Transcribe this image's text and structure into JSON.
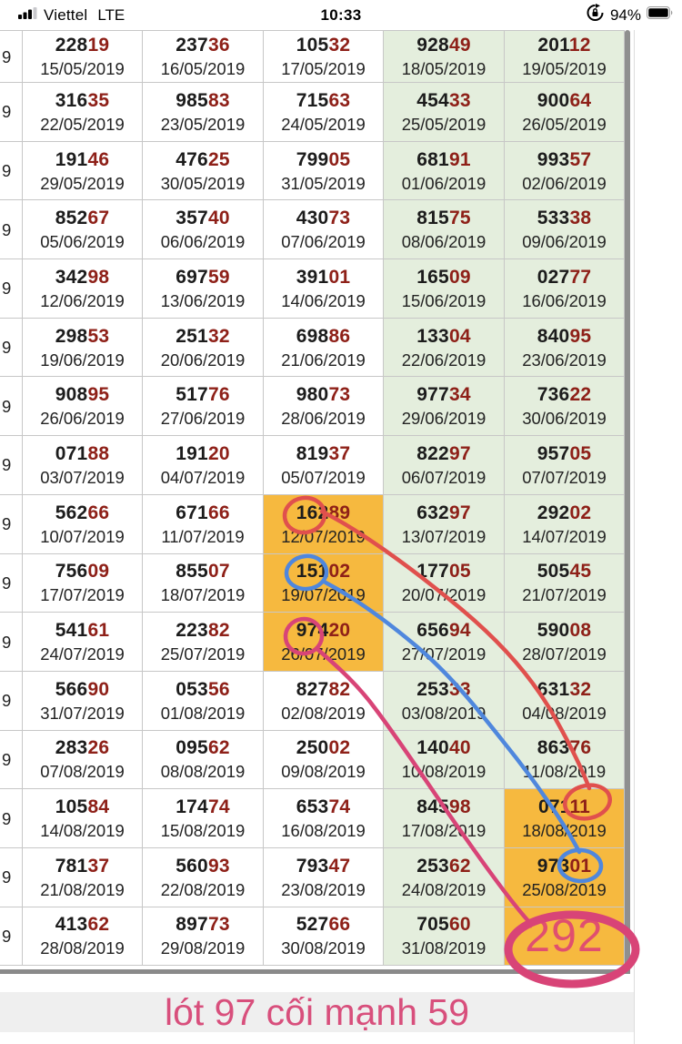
{
  "status_bar": {
    "carrier": "Viettel",
    "network": "LTE",
    "time": "10:33",
    "battery_percent": "94%",
    "icons": [
      "signal-bars-icon",
      "orientation-lock-icon",
      "battery-icon"
    ]
  },
  "table": {
    "left_partial_text": "9",
    "rows": [
      {
        "cells": [
          {
            "n1": "228",
            "n2": "19",
            "date": "15/05/2019",
            "bg": "white"
          },
          {
            "n1": "237",
            "n2": "36",
            "date": "16/05/2019",
            "bg": "white"
          },
          {
            "n1": "105",
            "n2": "32",
            "date": "17/05/2019",
            "bg": "white"
          },
          {
            "n1": "928",
            "n2": "49",
            "date": "18/05/2019",
            "bg": "green"
          },
          {
            "n1": "201",
            "n2": "12",
            "date": "19/05/2019",
            "bg": "green"
          }
        ]
      },
      {
        "cells": [
          {
            "n1": "316",
            "n2": "35",
            "date": "22/05/2019",
            "bg": "white"
          },
          {
            "n1": "985",
            "n2": "83",
            "date": "23/05/2019",
            "bg": "white"
          },
          {
            "n1": "715",
            "n2": "63",
            "date": "24/05/2019",
            "bg": "white"
          },
          {
            "n1": "454",
            "n2": "33",
            "date": "25/05/2019",
            "bg": "green"
          },
          {
            "n1": "900",
            "n2": "64",
            "date": "26/05/2019",
            "bg": "green"
          }
        ]
      },
      {
        "cells": [
          {
            "n1": "191",
            "n2": "46",
            "date": "29/05/2019",
            "bg": "white"
          },
          {
            "n1": "476",
            "n2": "25",
            "date": "30/05/2019",
            "bg": "white"
          },
          {
            "n1": "799",
            "n2": "05",
            "date": "31/05/2019",
            "bg": "white"
          },
          {
            "n1": "681",
            "n2": "91",
            "date": "01/06/2019",
            "bg": "green"
          },
          {
            "n1": "993",
            "n2": "57",
            "date": "02/06/2019",
            "bg": "green"
          }
        ]
      },
      {
        "cells": [
          {
            "n1": "852",
            "n2": "67",
            "date": "05/06/2019",
            "bg": "white"
          },
          {
            "n1": "357",
            "n2": "40",
            "date": "06/06/2019",
            "bg": "white"
          },
          {
            "n1": "430",
            "n2": "73",
            "date": "07/06/2019",
            "bg": "white"
          },
          {
            "n1": "815",
            "n2": "75",
            "date": "08/06/2019",
            "bg": "green"
          },
          {
            "n1": "533",
            "n2": "38",
            "date": "09/06/2019",
            "bg": "green"
          }
        ]
      },
      {
        "cells": [
          {
            "n1": "342",
            "n2": "98",
            "date": "12/06/2019",
            "bg": "white"
          },
          {
            "n1": "697",
            "n2": "59",
            "date": "13/06/2019",
            "bg": "white"
          },
          {
            "n1": "391",
            "n2": "01",
            "date": "14/06/2019",
            "bg": "white"
          },
          {
            "n1": "165",
            "n2": "09",
            "date": "15/06/2019",
            "bg": "green"
          },
          {
            "n1": "027",
            "n2": "77",
            "date": "16/06/2019",
            "bg": "green"
          }
        ]
      },
      {
        "cells": [
          {
            "n1": "298",
            "n2": "53",
            "date": "19/06/2019",
            "bg": "white"
          },
          {
            "n1": "251",
            "n2": "32",
            "date": "20/06/2019",
            "bg": "white"
          },
          {
            "n1": "698",
            "n2": "86",
            "date": "21/06/2019",
            "bg": "white"
          },
          {
            "n1": "133",
            "n2": "04",
            "date": "22/06/2019",
            "bg": "green"
          },
          {
            "n1": "840",
            "n2": "95",
            "date": "23/06/2019",
            "bg": "green"
          }
        ]
      },
      {
        "cells": [
          {
            "n1": "908",
            "n2": "95",
            "date": "26/06/2019",
            "bg": "white"
          },
          {
            "n1": "517",
            "n2": "76",
            "date": "27/06/2019",
            "bg": "white"
          },
          {
            "n1": "980",
            "n2": "73",
            "date": "28/06/2019",
            "bg": "white"
          },
          {
            "n1": "977",
            "n2": "34",
            "date": "29/06/2019",
            "bg": "green"
          },
          {
            "n1": "736",
            "n2": "22",
            "date": "30/06/2019",
            "bg": "green"
          }
        ]
      },
      {
        "cells": [
          {
            "n1": "071",
            "n2": "88",
            "date": "03/07/2019",
            "bg": "white"
          },
          {
            "n1": "191",
            "n2": "20",
            "date": "04/07/2019",
            "bg": "white"
          },
          {
            "n1": "819",
            "n2": "37",
            "date": "05/07/2019",
            "bg": "white"
          },
          {
            "n1": "822",
            "n2": "97",
            "date": "06/07/2019",
            "bg": "green"
          },
          {
            "n1": "957",
            "n2": "05",
            "date": "07/07/2019",
            "bg": "green"
          }
        ]
      },
      {
        "cells": [
          {
            "n1": "562",
            "n2": "66",
            "date": "10/07/2019",
            "bg": "white"
          },
          {
            "n1": "671",
            "n2": "66",
            "date": "11/07/2019",
            "bg": "white"
          },
          {
            "n1": "162",
            "n2": "89",
            "date": "12/07/2019",
            "bg": "orange"
          },
          {
            "n1": "632",
            "n2": "97",
            "date": "13/07/2019",
            "bg": "green"
          },
          {
            "n1": "292",
            "n2": "02",
            "date": "14/07/2019",
            "bg": "green"
          }
        ]
      },
      {
        "cells": [
          {
            "n1": "756",
            "n2": "09",
            "date": "17/07/2019",
            "bg": "white"
          },
          {
            "n1": "855",
            "n2": "07",
            "date": "18/07/2019",
            "bg": "white"
          },
          {
            "n1": "151",
            "n2": "02",
            "date": "19/07/2019",
            "bg": "orange"
          },
          {
            "n1": "177",
            "n2": "05",
            "date": "20/07/2019",
            "bg": "green"
          },
          {
            "n1": "505",
            "n2": "45",
            "date": "21/07/2019",
            "bg": "green"
          }
        ]
      },
      {
        "cells": [
          {
            "n1": "541",
            "n2": "61",
            "date": "24/07/2019",
            "bg": "white"
          },
          {
            "n1": "223",
            "n2": "82",
            "date": "25/07/2019",
            "bg": "white"
          },
          {
            "n1": "974",
            "n2": "20",
            "date": "26/07/2019",
            "bg": "orange"
          },
          {
            "n1": "656",
            "n2": "94",
            "date": "27/07/2019",
            "bg": "green"
          },
          {
            "n1": "590",
            "n2": "08",
            "date": "28/07/2019",
            "bg": "green"
          }
        ]
      },
      {
        "cells": [
          {
            "n1": "566",
            "n2": "90",
            "date": "31/07/2019",
            "bg": "white"
          },
          {
            "n1": "053",
            "n2": "56",
            "date": "01/08/2019",
            "bg": "white"
          },
          {
            "n1": "827",
            "n2": "82",
            "date": "02/08/2019",
            "bg": "white"
          },
          {
            "n1": "253",
            "n2": "33",
            "date": "03/08/2019",
            "bg": "green"
          },
          {
            "n1": "631",
            "n2": "32",
            "date": "04/08/2019",
            "bg": "green"
          }
        ]
      },
      {
        "cells": [
          {
            "n1": "283",
            "n2": "26",
            "date": "07/08/2019",
            "bg": "white"
          },
          {
            "n1": "095",
            "n2": "62",
            "date": "08/08/2019",
            "bg": "white"
          },
          {
            "n1": "250",
            "n2": "02",
            "date": "09/08/2019",
            "bg": "white"
          },
          {
            "n1": "140",
            "n2": "40",
            "date": "10/08/2019",
            "bg": "green"
          },
          {
            "n1": "863",
            "n2": "76",
            "date": "11/08/2019",
            "bg": "green"
          }
        ]
      },
      {
        "cells": [
          {
            "n1": "105",
            "n2": "84",
            "date": "14/08/2019",
            "bg": "white"
          },
          {
            "n1": "174",
            "n2": "74",
            "date": "15/08/2019",
            "bg": "white"
          },
          {
            "n1": "653",
            "n2": "74",
            "date": "16/08/2019",
            "bg": "white"
          },
          {
            "n1": "845",
            "n2": "98",
            "date": "17/08/2019",
            "bg": "green"
          },
          {
            "n1": "071",
            "n2": "11",
            "date": "18/08/2019",
            "bg": "orange"
          }
        ]
      },
      {
        "cells": [
          {
            "n1": "781",
            "n2": "37",
            "date": "21/08/2019",
            "bg": "white"
          },
          {
            "n1": "560",
            "n2": "93",
            "date": "22/08/2019",
            "bg": "white"
          },
          {
            "n1": "793",
            "n2": "47",
            "date": "23/08/2019",
            "bg": "white"
          },
          {
            "n1": "253",
            "n2": "62",
            "date": "24/08/2019",
            "bg": "green"
          },
          {
            "n1": "973",
            "n2": "01",
            "date": "25/08/2019",
            "bg": "orange"
          }
        ]
      },
      {
        "cells": [
          {
            "n1": "413",
            "n2": "62",
            "date": "28/08/2019",
            "bg": "white"
          },
          {
            "n1": "897",
            "n2": "73",
            "date": "29/08/2019",
            "bg": "white"
          },
          {
            "n1": "527",
            "n2": "66",
            "date": "30/08/2019",
            "bg": "white"
          },
          {
            "n1": "705",
            "n2": "60",
            "date": "31/08/2019",
            "bg": "green"
          },
          {
            "big": "292",
            "bg": "orange"
          }
        ]
      }
    ]
  },
  "big_number": "292",
  "footer": {
    "text": "lót 97 cối mạnh 59"
  },
  "colors": {
    "number_black": "#1c1c1c",
    "number_red": "#8e2018",
    "cell_green": "#e4eedd",
    "cell_orange": "#f6b93f",
    "annotation_red": "#e0504d",
    "annotation_blue": "#4f87dd",
    "annotation_pink": "#d84477",
    "big_number_pink": "#e04f6f",
    "footer_pink": "#d84f7c"
  },
  "annotations": [
    {
      "name": "red-circle-162",
      "note": "red circle around 162 of 16289"
    },
    {
      "name": "red-line",
      "note": "red line from 16289 to 07111"
    },
    {
      "name": "red-circle-111",
      "note": "red circle around 11 of 07111"
    },
    {
      "name": "blue-circle-151",
      "note": "blue circle around 151 of 15102"
    },
    {
      "name": "blue-line",
      "note": "blue line from 15102 to 97301"
    },
    {
      "name": "blue-circle-01",
      "note": "blue circle around 01 of 97301"
    },
    {
      "name": "pink-circle-97",
      "note": "pink circle around 97 of 97420"
    },
    {
      "name": "pink-line",
      "note": "pink line from 97420 to 292"
    },
    {
      "name": "pink-ellipse-292",
      "note": "large pink ellipse around 292"
    }
  ]
}
